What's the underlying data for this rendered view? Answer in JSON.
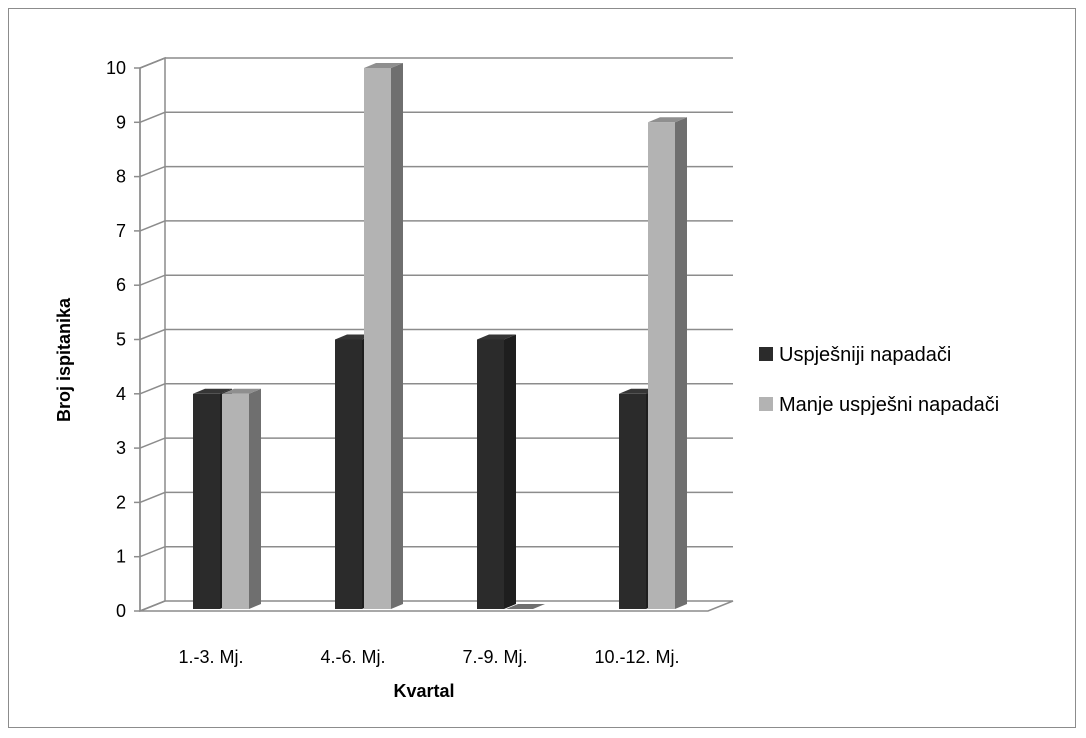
{
  "chart_data": {
    "type": "bar",
    "title": "",
    "xlabel": "Kvartal",
    "ylabel": "Broj ispitanika",
    "categories": [
      "1.-3. Mj.",
      "4.-6. Mj.",
      "7.-9. Mj.",
      "10.-12. Mj."
    ],
    "series": [
      {
        "name": "Uspješniji napadači",
        "values": [
          4,
          5,
          5,
          4
        ],
        "color": "#2b2b2b"
      },
      {
        "name": "Manje uspješni napadači",
        "values": [
          4,
          10,
          0,
          9
        ],
        "color": "#b3b3b3"
      }
    ],
    "ylim": [
      0,
      10
    ],
    "yticks": [
      "0",
      "1",
      "2",
      "3",
      "4",
      "5",
      "6",
      "7",
      "8",
      "9",
      "10"
    ],
    "grid": true,
    "legend_position": "right",
    "style": "3d-clustered-column"
  }
}
